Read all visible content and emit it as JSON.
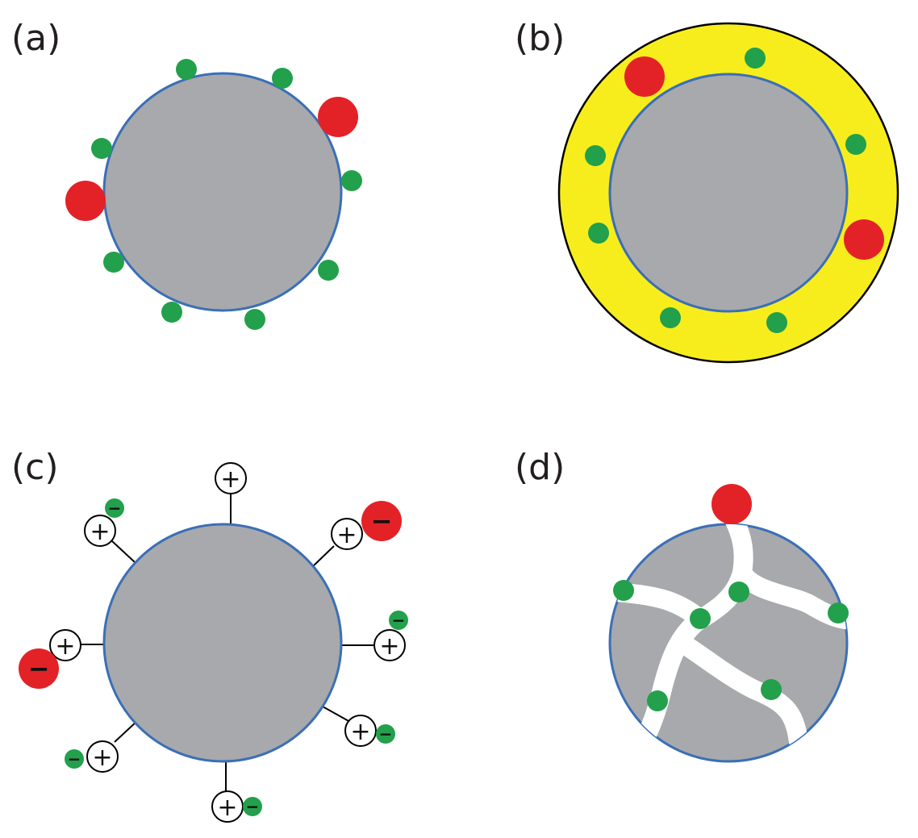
{
  "labels": {
    "a": "(a)",
    "b": "(b)",
    "c": "(c)",
    "d": "(d)"
  },
  "signs": {
    "plus": "+",
    "minus": "−"
  },
  "colors": {
    "particle_fill": "#a7a9ac",
    "particle_stroke": "#3b6fb6",
    "small_molecule": "#22a04b",
    "large_molecule": "#e32227",
    "coating": "#f7ed1d",
    "outline": "#000000",
    "channel": "#ffffff"
  }
}
